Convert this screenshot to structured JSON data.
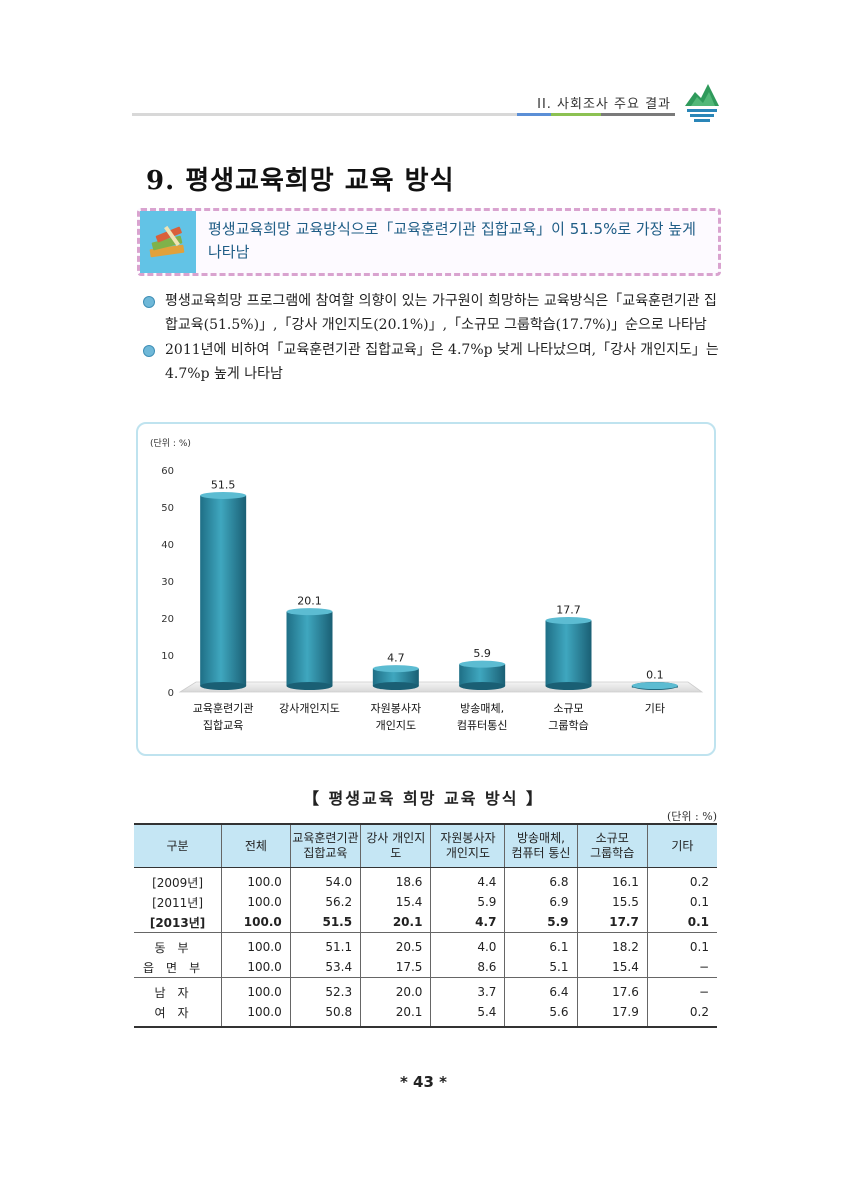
{
  "header": {
    "chapter": "II. 사회조사 주요 결과"
  },
  "section": {
    "title": "9. 평생교육희망 교육 방식"
  },
  "summary": {
    "text": "평생교육희망 교육방식으로「교육훈련기관 집합교육」이 51.5%로 가장 높게 나타남"
  },
  "bullets": [
    "평생교육희망 프로그램에 참여할 의향이 있는 가구원이 희망하는 교육방식은「교육훈련기관 집합교육(51.5%)」,「강사 개인지도(20.1%)」,「소규모 그룹학습(17.7%)」순으로 나타남",
    "2011년에 비하여「교육훈련기관 집합교육」은 4.7%p 낮게 나타났으며,「강사 개인지도」는 4.7%p 높게 나타남"
  ],
  "chart_data": {
    "type": "bar",
    "unit_label": "(단위 : %)",
    "categories": [
      [
        "교육훈련기관",
        "집합교육"
      ],
      [
        "강사개인지도"
      ],
      [
        "자원봉사자",
        "개인지도"
      ],
      [
        "방송매체,",
        "컴퓨터통신"
      ],
      [
        "소규모",
        "그룹학습"
      ],
      [
        "기타"
      ]
    ],
    "values": [
      51.5,
      20.1,
      4.7,
      5.9,
      17.7,
      0.1
    ],
    "value_labels": [
      "51.5",
      "20.1",
      "4.7",
      "5.9",
      "17.7",
      "0.1"
    ],
    "ylim": [
      0,
      60
    ],
    "yticks": [
      0,
      10,
      20,
      30,
      40,
      50,
      60
    ],
    "bar_color": "#2e8ea6"
  },
  "table": {
    "title": "【 평생교육 희망 교육 방식 】",
    "unit": "(단위 : %)",
    "headers": [
      [
        "구분"
      ],
      [
        "전체"
      ],
      [
        "교육훈련기관",
        "집합교육"
      ],
      [
        "강사 개인지도"
      ],
      [
        "자원봉사자",
        "개인지도"
      ],
      [
        "방송매체,",
        "컴퓨터 통신"
      ],
      [
        "소규모",
        "그룹학습"
      ],
      [
        "기타"
      ]
    ],
    "rows": [
      {
        "label": "[2009년]",
        "cells": [
          "100.0",
          "54.0",
          "18.6",
          "4.4",
          "6.8",
          "16.1",
          "0.2"
        ]
      },
      {
        "label": "[2011년]",
        "cells": [
          "100.0",
          "56.2",
          "15.4",
          "5.9",
          "6.9",
          "15.5",
          "0.1"
        ]
      },
      {
        "label": "[2013년]",
        "cells": [
          "100.0",
          "51.5",
          "20.1",
          "4.7",
          "5.9",
          "17.7",
          "0.1"
        ]
      },
      {
        "label": "동부",
        "cells": [
          "100.0",
          "51.1",
          "20.5",
          "4.0",
          "6.1",
          "18.2",
          "0.1"
        ]
      },
      {
        "label": "읍면부",
        "cells": [
          "100.0",
          "53.4",
          "17.5",
          "8.6",
          "5.1",
          "15.4",
          "−"
        ]
      },
      {
        "label": "남자",
        "cells": [
          "100.0",
          "52.3",
          "20.0",
          "3.7",
          "6.4",
          "17.6",
          "−"
        ]
      },
      {
        "label": "여자",
        "cells": [
          "100.0",
          "50.8",
          "20.1",
          "5.4",
          "5.6",
          "17.9",
          "0.2"
        ]
      }
    ]
  },
  "page": {
    "number": "* 43 *"
  },
  "colors": {
    "accent_blue": "#5b8fd6",
    "accent_green": "#8cc152",
    "accent_gray": "#7a7a7a",
    "bar": "#2e8ea6",
    "table_header": "#c5e6f4"
  }
}
